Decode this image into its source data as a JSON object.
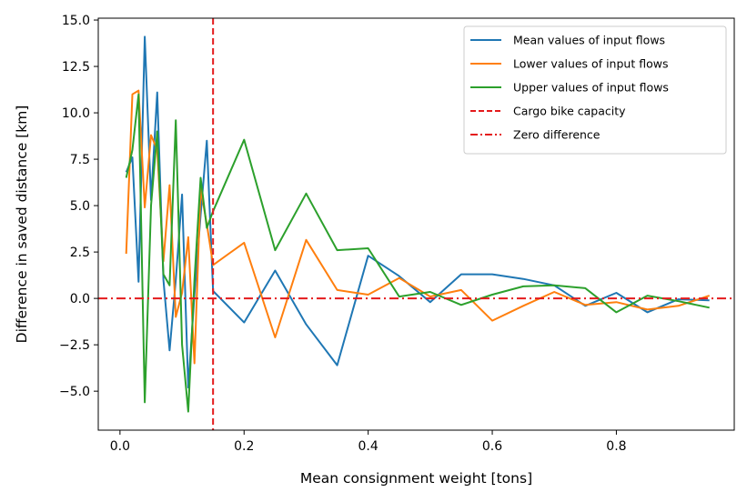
{
  "chart_data": {
    "type": "line",
    "xlabel": "Mean consignment weight [tons]",
    "ylabel": "Difference in saved distance [km]",
    "xlim": [
      -0.035,
      0.99
    ],
    "ylim": [
      -7.1,
      15.1
    ],
    "xticks": [
      0.0,
      0.2,
      0.4,
      0.6,
      0.8
    ],
    "xtick_labels": [
      "0.0",
      "0.2",
      "0.4",
      "0.6",
      "0.8"
    ],
    "yticks": [
      -5.0,
      -2.5,
      0.0,
      2.5,
      5.0,
      7.5,
      10.0,
      12.5,
      15.0
    ],
    "ytick_labels": [
      "−5.0",
      "−2.5",
      "0.0",
      "2.5",
      "5.0",
      "7.5",
      "10.0",
      "12.5",
      "15.0"
    ],
    "grid": false,
    "legend_position": "top-right",
    "series": [
      {
        "name": "Mean values of input flows",
        "color": "#1f77b4",
        "x": [
          0.01,
          0.02,
          0.03,
          0.04,
          0.05,
          0.06,
          0.07,
          0.08,
          0.09,
          0.1,
          0.11,
          0.12,
          0.13,
          0.14,
          0.15,
          0.2,
          0.25,
          0.3,
          0.35,
          0.4,
          0.45,
          0.5,
          0.55,
          0.6,
          0.65,
          0.7,
          0.75,
          0.8,
          0.85,
          0.9,
          0.95
        ],
        "y": [
          6.8,
          7.6,
          0.9,
          14.1,
          5.3,
          11.1,
          1.0,
          -2.8,
          1.0,
          5.6,
          -4.8,
          0.2,
          4.5,
          8.5,
          0.4,
          -1.3,
          1.5,
          -1.4,
          -3.6,
          2.3,
          1.2,
          -0.2,
          1.3,
          1.3,
          1.05,
          0.7,
          -0.4,
          0.3,
          -0.75,
          -0.05,
          -0.1
        ]
      },
      {
        "name": "Lower values of input flows",
        "color": "#ff7f0e",
        "x": [
          0.01,
          0.02,
          0.03,
          0.04,
          0.05,
          0.06,
          0.07,
          0.08,
          0.09,
          0.1,
          0.11,
          0.12,
          0.13,
          0.14,
          0.15,
          0.2,
          0.25,
          0.3,
          0.35,
          0.4,
          0.45,
          0.5,
          0.55,
          0.6,
          0.65,
          0.7,
          0.75,
          0.8,
          0.85,
          0.9,
          0.95
        ],
        "y": [
          2.4,
          11.0,
          11.2,
          4.9,
          8.8,
          8.0,
          2.0,
          6.1,
          -1.0,
          0.3,
          3.3,
          -3.5,
          5.9,
          4.0,
          1.8,
          3.0,
          -2.1,
          3.15,
          0.45,
          0.2,
          1.1,
          0.1,
          0.45,
          -1.2,
          -0.4,
          0.35,
          -0.35,
          -0.2,
          -0.6,
          -0.4,
          0.15
        ]
      },
      {
        "name": "Upper values of input flows",
        "color": "#2ca02c",
        "x": [
          0.01,
          0.02,
          0.03,
          0.04,
          0.05,
          0.06,
          0.07,
          0.08,
          0.09,
          0.1,
          0.11,
          0.12,
          0.13,
          0.14,
          0.15,
          0.2,
          0.25,
          0.3,
          0.35,
          0.4,
          0.45,
          0.5,
          0.55,
          0.6,
          0.65,
          0.7,
          0.75,
          0.8,
          0.85,
          0.9,
          0.95
        ],
        "y": [
          6.5,
          8.0,
          11.0,
          -5.6,
          5.0,
          9.0,
          1.3,
          0.7,
          9.6,
          -2.5,
          -6.1,
          1.0,
          6.5,
          3.8,
          4.7,
          8.55,
          2.6,
          5.65,
          2.6,
          2.7,
          0.1,
          0.35,
          -0.35,
          0.2,
          0.65,
          0.7,
          0.55,
          -0.75,
          0.15,
          -0.15,
          -0.5
        ]
      }
    ],
    "reference_lines": [
      {
        "name": "Cargo bike capacity",
        "orientation": "vertical",
        "value": 0.15,
        "color": "#e41a1c",
        "style": "dashed"
      },
      {
        "name": "Zero difference",
        "orientation": "horizontal",
        "value": 0.0,
        "color": "#e41a1c",
        "style": "dashdot"
      }
    ]
  }
}
